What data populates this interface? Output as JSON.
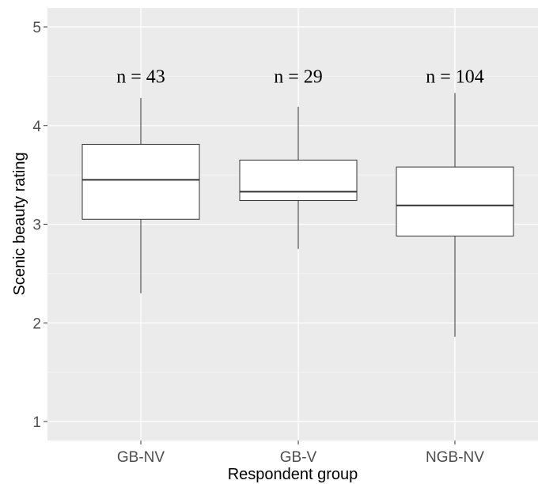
{
  "chart_data": {
    "type": "boxplot",
    "title": "",
    "xlabel": "Respondent group",
    "ylabel": "Scenic beauty rating",
    "ylim": [
      0.8,
      5.2
    ],
    "yticks": [
      1,
      2,
      3,
      4,
      5
    ],
    "grid": true,
    "legend": "none",
    "colors": {
      "panel": "#ebebeb",
      "grid_major": "#ffffff",
      "grid_minor": "#f5f5f5",
      "box_fill": "#ffffff",
      "box_stroke": "#333333",
      "whisker": "#333333"
    },
    "categories": [
      "GB-NV",
      "GB-V",
      "NGB-NV"
    ],
    "boxes": [
      {
        "group": "GB-NV",
        "whisker_low": 2.3,
        "q1": 3.05,
        "median": 3.45,
        "q3": 3.81,
        "whisker_high": 4.28,
        "n_label": "n = 43"
      },
      {
        "group": "GB-V",
        "whisker_low": 2.75,
        "q1": 3.24,
        "median": 3.33,
        "q3": 3.65,
        "whisker_high": 4.19,
        "n_label": "n = 29"
      },
      {
        "group": "NGB-NV",
        "whisker_low": 1.86,
        "q1": 2.88,
        "median": 3.19,
        "q3": 3.58,
        "whisker_high": 4.33,
        "n_label": "n = 104"
      }
    ],
    "annotation_y": 4.5
  }
}
